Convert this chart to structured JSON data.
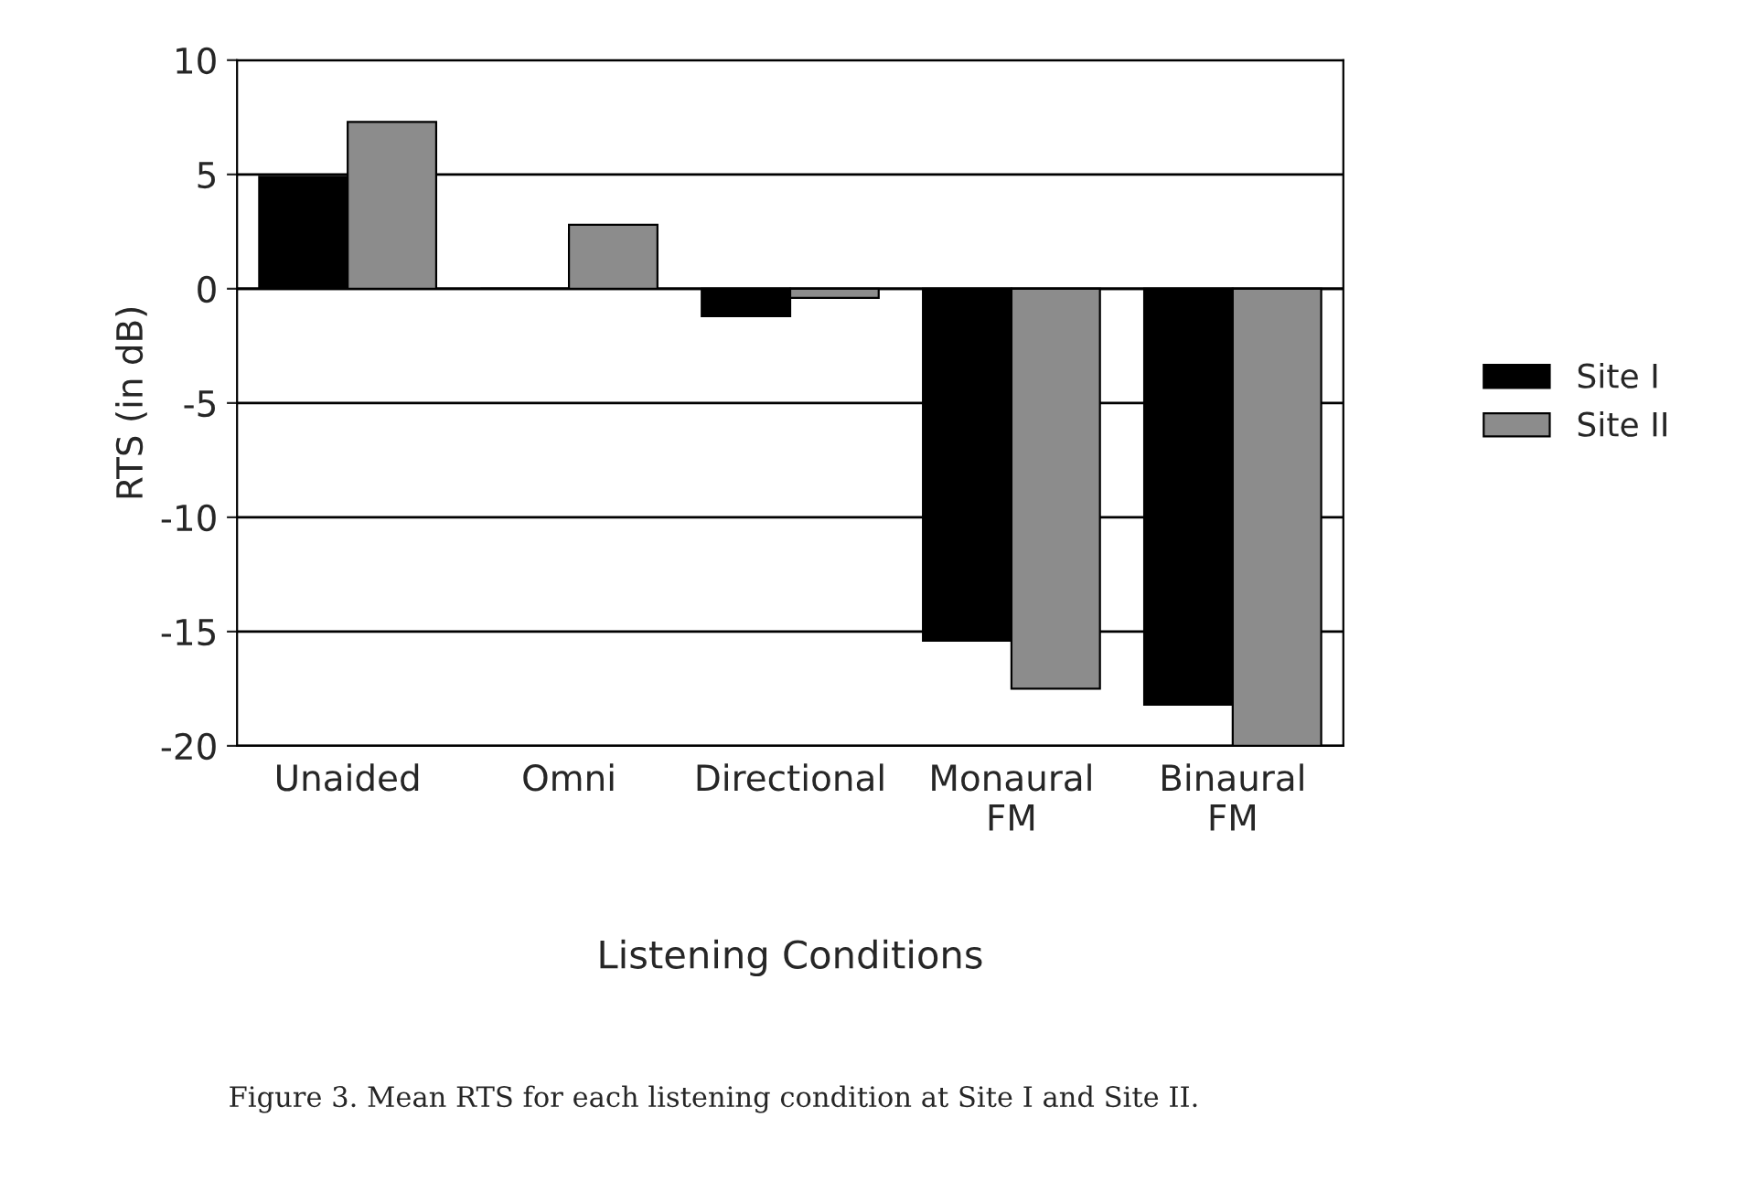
{
  "chart_data": {
    "type": "bar",
    "categories": [
      "Unaided",
      "Omni",
      "Directional",
      "Monaural\nFM",
      "Binaural\nFM"
    ],
    "series": [
      {
        "name": "Site I",
        "color": "#000000",
        "values": [
          4.9,
          0,
          -1.2,
          -15.4,
          -18.2
        ]
      },
      {
        "name": "Site II",
        "color": "#8c8c8c",
        "values": [
          7.3,
          2.8,
          -0.4,
          -17.5,
          -20
        ]
      }
    ],
    "xlabel": "Listening Conditions",
    "ylabel": "RTS (in dB)",
    "ylim": [
      -20,
      10
    ],
    "yticks": [
      -20,
      -15,
      -10,
      -5,
      0,
      5,
      10
    ],
    "grid": "y",
    "legend": "right",
    "annotations": [
      "Figure 3. Mean RTS for each listening condition at Site I and Site II."
    ]
  }
}
